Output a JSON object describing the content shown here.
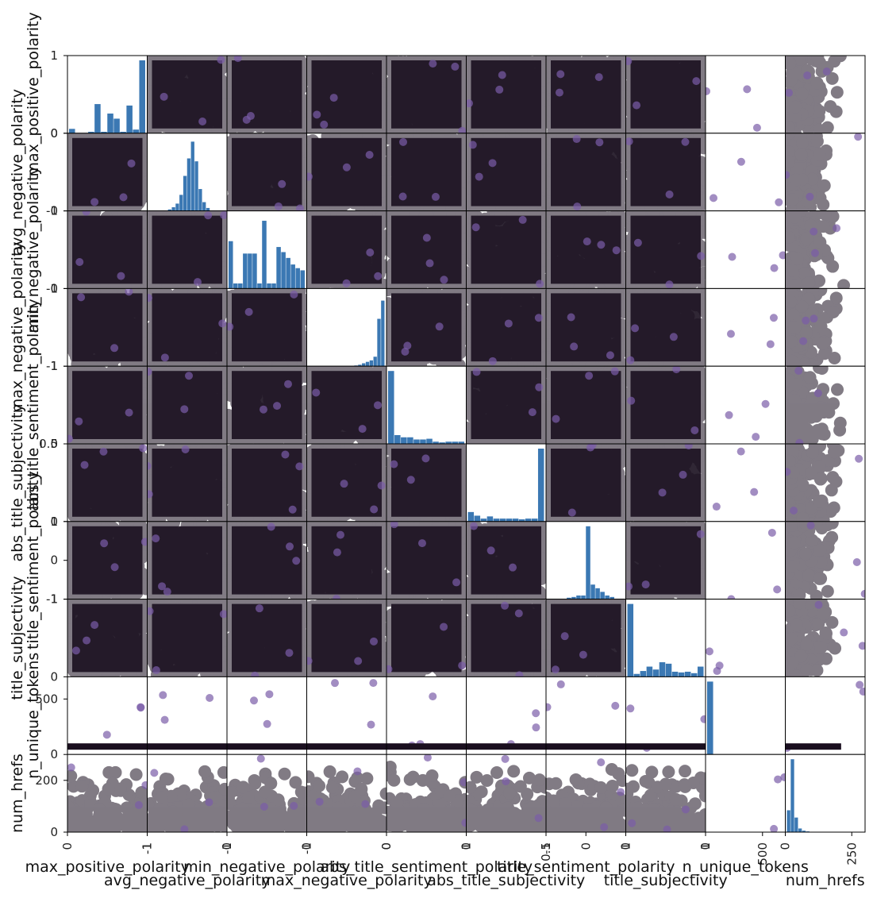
{
  "chart_data": {
    "type": "scatter",
    "kind": "scatter-matrix",
    "variables": [
      "max_positive_polarity",
      "avg_negative_polarity",
      "min_negative_polarity",
      "max_negative_polarity",
      "abs_title_sentiment_polarity",
      "abs_title_subjectivity",
      "title_sentiment_polarity",
      "title_subjectivity",
      "n_unique_tokens",
      "num_hrefs"
    ],
    "ranges": [
      [
        0,
        1
      ],
      [
        -1,
        0
      ],
      [
        -1,
        0
      ],
      [
        -1,
        0
      ],
      [
        0,
        1
      ],
      [
        0,
        0.5
      ],
      [
        -1,
        1
      ],
      [
        0,
        1
      ],
      [
        0,
        700
      ],
      [
        0,
        300
      ]
    ],
    "ticks": [
      [
        0,
        1
      ],
      [
        -1,
        0
      ],
      [
        -1,
        0
      ],
      [
        -1,
        0
      ],
      [
        0,
        1
      ],
      [
        0,
        0.5
      ],
      [
        -1,
        0,
        1
      ],
      [
        0,
        1
      ],
      [
        0,
        500
      ],
      [
        0,
        200
      ]
    ],
    "x_tick_labels": [
      [
        "0",
        "1"
      ],
      [
        "-1",
        "0"
      ],
      [
        "-1",
        "0"
      ],
      [
        "-1",
        "0"
      ],
      [
        "0",
        "1"
      ],
      [
        "0",
        "0.5"
      ],
      [
        "-1",
        "0",
        "1"
      ],
      [
        "0",
        "1"
      ],
      [
        "0",
        "500"
      ],
      [
        "0",
        "250"
      ]
    ],
    "x_tick_values": [
      [
        0,
        1
      ],
      [
        -1,
        0
      ],
      [
        -1,
        0
      ],
      [
        -1,
        0
      ],
      [
        0,
        1
      ],
      [
        0,
        0.5
      ],
      [
        -1,
        0,
        1
      ],
      [
        0,
        1
      ],
      [
        0,
        500
      ],
      [
        0,
        250
      ]
    ],
    "y_tick_labels": [
      [
        "0",
        "1"
      ],
      [
        "-1",
        "0"
      ],
      [
        "-1",
        "0"
      ],
      [
        "-1",
        "0"
      ],
      [
        "0",
        "1"
      ],
      [
        "0",
        "0.5"
      ],
      [
        "-1",
        "0",
        "1"
      ],
      [
        "0",
        "1"
      ],
      [
        "0",
        "500"
      ],
      [
        "0",
        "200"
      ]
    ],
    "diagonal": "histogram",
    "histograms": [
      [
        0.06,
        0,
        0,
        0.02,
        0.4,
        0.02,
        0.27,
        0.2,
        0.02,
        0.38,
        0.05,
        1.0
      ],
      [
        0,
        0,
        0,
        0,
        0,
        0.02,
        0.05,
        0.1,
        0.22,
        0.48,
        0.72,
        0.95,
        0.68,
        0.3,
        0.12,
        0.04,
        0,
        0,
        0,
        0
      ],
      [
        0.65,
        0.07,
        0.07,
        0.48,
        0.48,
        0.48,
        0.07,
        0.93,
        0.07,
        0.07,
        0.57,
        0.5,
        0.42,
        0.33,
        0.28,
        0.25
      ],
      [
        0,
        0,
        0,
        0,
        0,
        0,
        0,
        0,
        0,
        0,
        0,
        0,
        0.01,
        0.02,
        0.04,
        0.06,
        0.08,
        0.13,
        0.65,
        0.9
      ],
      [
        1.0,
        0.12,
        0.09,
        0.09,
        0.06,
        0.06,
        0.07,
        0.03,
        0.02,
        0.03,
        0.03,
        0.03
      ],
      [
        0.13,
        0.08,
        0.04,
        0.07,
        0.04,
        0.04,
        0.04,
        0.04,
        0.03,
        0.04,
        0.04,
        1.0
      ],
      [
        0,
        0,
        0,
        0,
        0.02,
        0.03,
        0.05,
        0.05,
        1.0,
        0.2,
        0.15,
        0.1,
        0.05,
        0.03,
        0,
        0
      ],
      [
        1.0,
        0.04,
        0.08,
        0.14,
        0.1,
        0.2,
        0.18,
        0.07,
        0.06,
        0.07,
        0.05,
        0.14
      ],
      [
        1.0,
        0,
        0,
        0,
        0,
        0,
        0,
        0,
        0,
        0,
        0,
        0
      ],
      [
        0.3,
        1.0,
        0.2,
        0.05,
        0.02,
        0.01,
        0,
        0,
        0,
        0,
        0,
        0,
        0,
        0,
        0,
        0,
        0,
        0,
        0,
        0
      ]
    ],
    "point_color": "#1a0f1f",
    "highlight_color": "#7a5ca8",
    "hist_color": "#3b78b3",
    "grid": false
  }
}
